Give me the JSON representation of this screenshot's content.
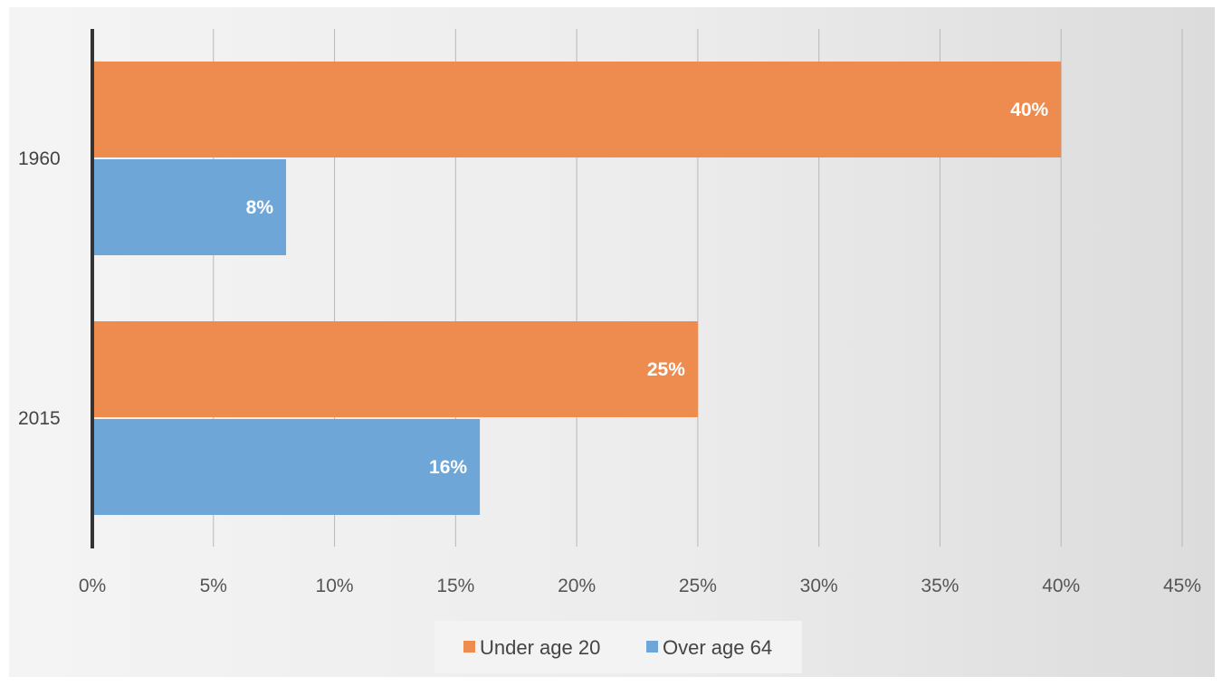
{
  "chart_data": {
    "type": "bar",
    "orientation": "horizontal",
    "categories": [
      "1960",
      "2015"
    ],
    "series": [
      {
        "name": "Under age 20",
        "color": "#ED8C4E",
        "values": [
          40,
          25
        ],
        "labels": [
          "40%",
          "25%"
        ]
      },
      {
        "name": "Over age 64",
        "color": "#6FA6D8",
        "values": [
          8,
          16
        ],
        "labels": [
          "8%",
          "16%"
        ]
      }
    ],
    "xlim": [
      0,
      45
    ],
    "xticks": [
      0,
      5,
      10,
      15,
      20,
      25,
      30,
      35,
      40,
      45
    ],
    "xtick_labels": [
      "0%",
      "5%",
      "10%",
      "15%",
      "20%",
      "25%",
      "30%",
      "35%",
      "40%",
      "45%"
    ],
    "grid": "vertical",
    "legend_position": "bottom"
  }
}
